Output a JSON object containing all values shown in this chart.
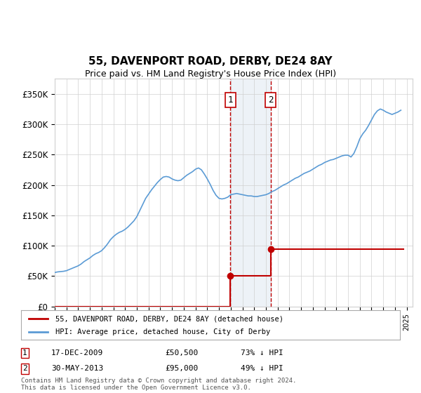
{
  "title": "55, DAVENPORT ROAD, DERBY, DE24 8AY",
  "subtitle": "Price paid vs. HM Land Registry's House Price Index (HPI)",
  "ylabel_ticks": [
    "£0",
    "£50K",
    "£100K",
    "£150K",
    "£200K",
    "£250K",
    "£300K",
    "£350K"
  ],
  "ytick_values": [
    0,
    50000,
    100000,
    150000,
    200000,
    250000,
    300000,
    350000
  ],
  "ylim": [
    0,
    375000
  ],
  "xlim_start": 1995.0,
  "xlim_end": 2025.5,
  "sale1_x": 2009.96,
  "sale1_y": 50500,
  "sale1_label": "1",
  "sale1_date": "17-DEC-2009",
  "sale1_price": "£50,500",
  "sale1_hpi": "73% ↓ HPI",
  "sale2_x": 2013.41,
  "sale2_y": 95000,
  "sale2_label": "2",
  "sale2_date": "30-MAY-2013",
  "sale2_price": "£95,000",
  "sale2_hpi": "49% ↓ HPI",
  "hpi_color": "#5b9bd5",
  "sale_color": "#c00000",
  "vline_color": "#c00000",
  "shade_color": "#dce6f1",
  "background_color": "#ffffff",
  "grid_color": "#d0d0d0",
  "legend_label_sale": "55, DAVENPORT ROAD, DERBY, DE24 8AY (detached house)",
  "legend_label_hpi": "HPI: Average price, detached house, City of Derby",
  "footnote": "Contains HM Land Registry data © Crown copyright and database right 2024.\nThis data is licensed under the Open Government Licence v3.0.",
  "hpi_data_x": [
    1995.0,
    1995.25,
    1995.5,
    1995.75,
    1996.0,
    1996.25,
    1996.5,
    1996.75,
    1997.0,
    1997.25,
    1997.5,
    1997.75,
    1998.0,
    1998.25,
    1998.5,
    1998.75,
    1999.0,
    1999.25,
    1999.5,
    1999.75,
    2000.0,
    2000.25,
    2000.5,
    2000.75,
    2001.0,
    2001.25,
    2001.5,
    2001.75,
    2002.0,
    2002.25,
    2002.5,
    2002.75,
    2003.0,
    2003.25,
    2003.5,
    2003.75,
    2004.0,
    2004.25,
    2004.5,
    2004.75,
    2005.0,
    2005.25,
    2005.5,
    2005.75,
    2006.0,
    2006.25,
    2006.5,
    2006.75,
    2007.0,
    2007.25,
    2007.5,
    2007.75,
    2008.0,
    2008.25,
    2008.5,
    2008.75,
    2009.0,
    2009.25,
    2009.5,
    2009.75,
    2010.0,
    2010.25,
    2010.5,
    2010.75,
    2011.0,
    2011.25,
    2011.5,
    2011.75,
    2012.0,
    2012.25,
    2012.5,
    2012.75,
    2013.0,
    2013.25,
    2013.5,
    2013.75,
    2014.0,
    2014.25,
    2014.5,
    2014.75,
    2015.0,
    2015.25,
    2015.5,
    2015.75,
    2016.0,
    2016.25,
    2016.5,
    2016.75,
    2017.0,
    2017.25,
    2017.5,
    2017.75,
    2018.0,
    2018.25,
    2018.5,
    2018.75,
    2019.0,
    2019.25,
    2019.5,
    2019.75,
    2020.0,
    2020.25,
    2020.5,
    2020.75,
    2021.0,
    2021.25,
    2021.5,
    2021.75,
    2022.0,
    2022.25,
    2022.5,
    2022.75,
    2023.0,
    2023.25,
    2023.5,
    2023.75,
    2024.0,
    2024.25,
    2024.5
  ],
  "hpi_data_y": [
    56000,
    57000,
    57500,
    58000,
    59000,
    61000,
    63000,
    65000,
    67000,
    70000,
    74000,
    77000,
    80000,
    84000,
    87000,
    89000,
    92000,
    97000,
    103000,
    110000,
    115000,
    119000,
    122000,
    124000,
    127000,
    131000,
    136000,
    141000,
    148000,
    158000,
    168000,
    178000,
    185000,
    192000,
    198000,
    204000,
    209000,
    213000,
    214000,
    213000,
    210000,
    208000,
    207000,
    208000,
    212000,
    216000,
    219000,
    222000,
    226000,
    228000,
    225000,
    218000,
    210000,
    201000,
    191000,
    183000,
    178000,
    177000,
    178000,
    180000,
    184000,
    185000,
    186000,
    185000,
    184000,
    183000,
    182000,
    182000,
    181000,
    181000,
    182000,
    183000,
    184000,
    186000,
    189000,
    191000,
    194000,
    197000,
    200000,
    202000,
    205000,
    208000,
    211000,
    213000,
    216000,
    219000,
    221000,
    223000,
    226000,
    229000,
    232000,
    234000,
    237000,
    239000,
    241000,
    242000,
    244000,
    246000,
    248000,
    249000,
    249000,
    246000,
    252000,
    263000,
    276000,
    284000,
    290000,
    298000,
    307000,
    316000,
    322000,
    325000,
    323000,
    320000,
    318000,
    316000,
    318000,
    320000,
    323000
  ],
  "sale_data_x": [
    1995.0,
    2009.96,
    2013.41
  ],
  "sale_data_y": [
    0,
    50500,
    95000
  ]
}
